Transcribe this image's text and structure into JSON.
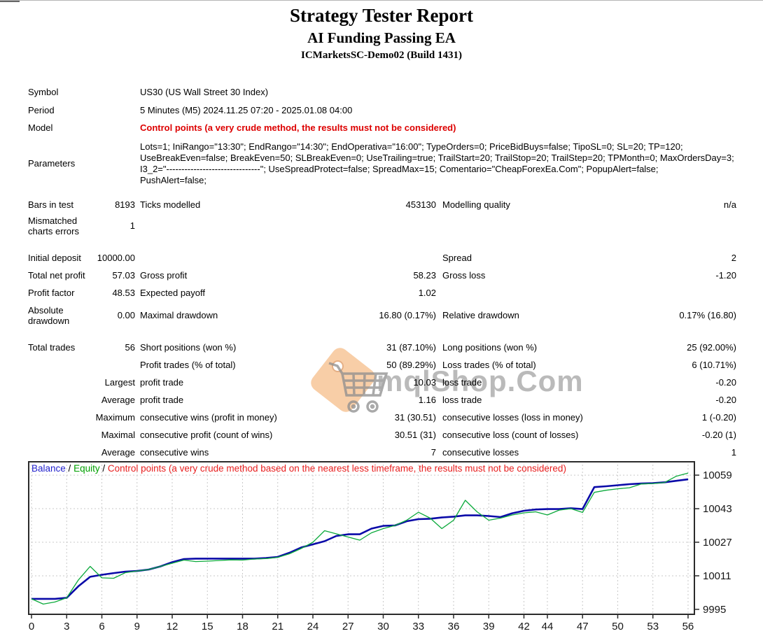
{
  "header": {
    "title": "Strategy Tester Report",
    "subtitle": "AI Funding Passing EA",
    "server": "ICMarketsSC-Demo02 (Build 1431)"
  },
  "info": {
    "symbol_label": "Symbol",
    "symbol": "US30 (US Wall Street 30 Index)",
    "period_label": "Period",
    "period": "5 Minutes (M5) 2024.11.25 07:20 - 2025.01.08 04:00",
    "model_label": "Model",
    "model": "Control points (a very crude method, the results must not be considered)",
    "parameters_label": "Parameters",
    "parameters_lines": [
      "Lots=1; IniRango=\"13:30\"; EndRango=\"14:30\"; EndOperativa=\"16:00\"; TypeOrders=0; PriceBidBuys=false; TipoSL=0; SL=20; TP=120;",
      "UseBreakEven=false; BreakEven=50; SLBreakEven=0; UseTrailing=true; TrailStart=20; TrailStop=20; TrailStep=20; TPMonth=0; MaxOrdersDay=3;",
      "I3_2=\"-------------------------------\"; UseSpreadProtect=false; SpreadMax=15; Comentario=\"CheapForexEa.Com\"; PopupAlert=false;",
      "PushAlert=false;"
    ]
  },
  "stats": {
    "rows": [
      {
        "c1": "Bars in test",
        "v2": "8193",
        "c3": "Ticks modelled",
        "v4": "453130",
        "c5": "Modelling quality",
        "v6": "n/a"
      },
      {
        "c1": "Mismatched charts errors",
        "v2": "1",
        "c3": "",
        "v4": "",
        "c5": "",
        "v6": ""
      },
      {
        "c1": "Initial deposit",
        "v2": "10000.00",
        "c3": "",
        "v4": "",
        "c5": "Spread",
        "v6": "2"
      },
      {
        "c1": "Total net profit",
        "v2": "57.03",
        "c3": "Gross profit",
        "v4": "58.23",
        "c5": "Gross loss",
        "v6": "-1.20"
      },
      {
        "c1": "Profit factor",
        "v2": "48.53",
        "c3": "Expected payoff",
        "v4": "1.02",
        "c5": "",
        "v6": ""
      },
      {
        "c1": "Absolute drawdown",
        "v2": "0.00",
        "c3": "Maximal drawdown",
        "v4": "16.80 (0.17%)",
        "c5": "Relative drawdown",
        "v6": "0.17% (16.80)"
      },
      {
        "c1": "Total trades",
        "v2": "56",
        "c3": "Short positions (won %)",
        "v4": "31 (87.10%)",
        "c5": "Long positions (won %)",
        "v6": "25 (92.00%)"
      },
      {
        "c1": "",
        "v2": "",
        "c3": "Profit trades (% of total)",
        "v4": "50 (89.29%)",
        "c5": "Loss trades (% of total)",
        "v6": "6 (10.71%)"
      },
      {
        "c1": "",
        "v2": "Largest",
        "c3": "profit trade",
        "v4": "10.03",
        "c5": "loss trade",
        "v6": "-0.20"
      },
      {
        "c1": "",
        "v2": "Average",
        "c3": "profit trade",
        "v4": "1.16",
        "c5": "loss trade",
        "v6": "-0.20"
      },
      {
        "c1": "",
        "v2": "Maximum",
        "c3": "consecutive wins (profit in money)",
        "v4": "31 (30.51)",
        "c5": "consecutive losses (loss in money)",
        "v6": "1 (-0.20)"
      },
      {
        "c1": "",
        "v2": "Maximal",
        "c3": "consecutive profit (count of wins)",
        "v4": "30.51 (31)",
        "c5": "consecutive loss (count of losses)",
        "v6": "-0.20 (1)"
      },
      {
        "c1": "",
        "v2": "Average",
        "c3": "consecutive wins",
        "v4": "7",
        "c5": "consecutive losses",
        "v6": "1"
      }
    ]
  },
  "watermark": {
    "text": "mqlShop.Com",
    "tag_color": "#f7c79b",
    "cart_color": "#8f8f8f",
    "text_color": "#a9a9a9"
  },
  "chart_data": {
    "type": "line",
    "title": "",
    "grid": true,
    "legend_position": "top-left",
    "legend_separator": " / ",
    "legend": [
      {
        "label": "Balance",
        "color": "#2222cc"
      },
      {
        "label": "Equity",
        "color": "#00a000"
      },
      {
        "label": "Control points (a very crude method based on the nearest less timeframe, the results must not be considered)",
        "color": "#e82020"
      }
    ],
    "xlabel": "",
    "ylabel": "",
    "xlim": [
      -0.3,
      56.6
    ],
    "ylim": [
      9992.3,
      10065.7
    ],
    "x_ticks": [
      0,
      3,
      6,
      9,
      12,
      15,
      18,
      21,
      24,
      27,
      30,
      33,
      36,
      39,
      42,
      44,
      47,
      50,
      53,
      56
    ],
    "y_ticks": [
      10059,
      10043,
      10027,
      10011,
      9995
    ],
    "x": [
      0,
      1,
      2,
      3,
      4,
      5,
      6,
      7,
      8,
      9,
      10,
      11,
      12,
      13,
      14,
      15,
      16,
      17,
      18,
      19,
      20,
      21,
      22,
      23,
      24,
      25,
      26,
      27,
      28,
      29,
      30,
      31,
      32,
      33,
      34,
      35,
      36,
      37,
      38,
      39,
      40,
      41,
      42,
      43,
      44,
      45,
      46,
      47,
      48,
      49,
      50,
      51,
      52,
      53,
      54,
      55,
      56
    ],
    "series": [
      {
        "name": "Balance",
        "color": "#0a0aa8",
        "width": 2.6,
        "values": [
          10000,
          10000,
          10000,
          10000.5,
          10006,
          10010.5,
          10011.5,
          10012.3,
          10013,
          10013.3,
          10014,
          10015.5,
          10017.5,
          10019,
          10019.2,
          10019.2,
          10019.2,
          10019.2,
          10019.2,
          10019.2,
          10019.5,
          10020,
          10022,
          10024.5,
          10026,
          10027.5,
          10030,
          10030.8,
          10030.8,
          10033.5,
          10034.8,
          10035,
          10037,
          10038,
          10038.2,
          10038.8,
          10039.2,
          10039.8,
          10039.8,
          10039.5,
          10039,
          10040.8,
          10042,
          10042.6,
          10042.8,
          10042.8,
          10043.2,
          10042.8,
          10053.3,
          10053.7,
          10054.2,
          10054.7,
          10055,
          10055.2,
          10055.6,
          10056.3,
          10057
        ]
      },
      {
        "name": "Equity",
        "color": "#0caa3c",
        "width": 1.3,
        "values": [
          10000,
          9997.5,
          9998.5,
          10000.5,
          10009,
          10015.5,
          10010,
          10009.8,
          10012.5,
          10013.3,
          10014,
          10015.5,
          10017,
          10018.5,
          10017.8,
          10018,
          10018.3,
          10018.6,
          10018.5,
          10019,
          10019.2,
          10019.8,
          10021.5,
          10024,
          10027,
          10032.5,
          10031,
          10029.5,
          10028,
          10031.5,
          10033.5,
          10035,
          10037.5,
          10041.3,
          10038.5,
          10033.5,
          10037.5,
          10047,
          10041.5,
          10037.5,
          10038.5,
          10040,
          10041,
          10041.5,
          10040,
          10042.3,
          10043,
          10041.2,
          10050.8,
          10051.8,
          10052.5,
          10053,
          10054.8,
          10055,
          10055.5,
          10058.5,
          10060
        ]
      }
    ]
  }
}
